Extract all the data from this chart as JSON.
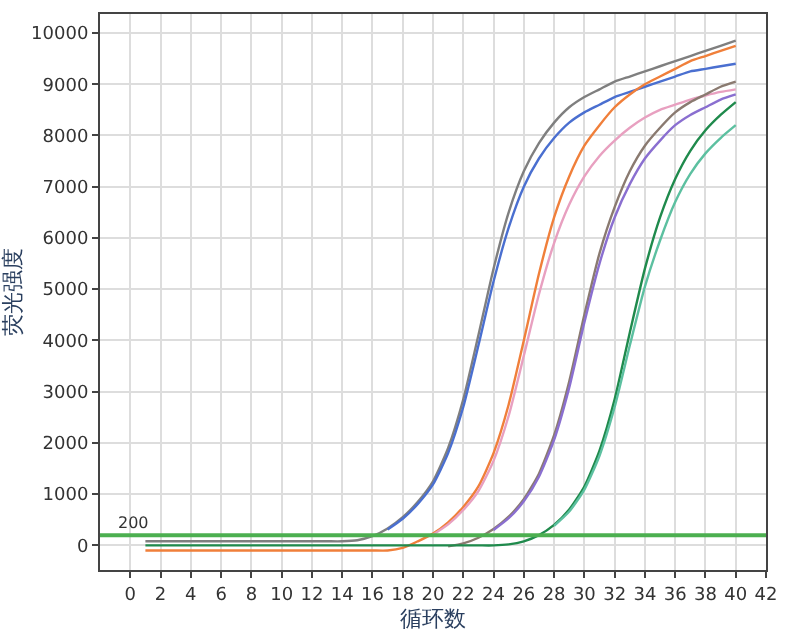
{
  "chart_data": {
    "type": "line",
    "xlabel": "循环数",
    "ylabel": "荧光强度",
    "x": [
      1,
      2,
      3,
      4,
      5,
      6,
      7,
      8,
      9,
      10,
      11,
      12,
      13,
      14,
      15,
      16,
      17,
      18,
      19,
      20,
      21,
      22,
      23,
      24,
      25,
      26,
      27,
      28,
      29,
      30,
      31,
      32,
      33,
      34,
      35,
      36,
      37,
      38,
      39,
      40
    ],
    "series": [
      {
        "color": "#7f7f7f",
        "values": [
          80,
          80,
          80,
          80,
          80,
          80,
          80,
          80,
          80,
          80,
          80,
          80,
          80,
          80,
          100,
          180,
          330,
          550,
          850,
          1250,
          1900,
          2850,
          4100,
          5400,
          6500,
          7300,
          7850,
          8250,
          8550,
          8750,
          8900,
          9050,
          9150,
          9250,
          9350,
          9450,
          9550,
          9650,
          9750,
          9850
        ]
      },
      {
        "color": "#4a6fd0",
        "values": [
          null,
          null,
          null,
          null,
          null,
          null,
          null,
          null,
          null,
          null,
          null,
          null,
          null,
          null,
          null,
          null,
          310,
          520,
          810,
          1190,
          1800,
          2700,
          3900,
          5150,
          6200,
          7000,
          7550,
          7950,
          8250,
          8450,
          8600,
          8750,
          8850,
          8950,
          9050,
          9150,
          9250,
          9300,
          9350,
          9400
        ]
      },
      {
        "color": "#f07f3a",
        "values": [
          -100,
          -100,
          -100,
          -100,
          -100,
          -100,
          -100,
          -100,
          -100,
          -100,
          -100,
          -100,
          -100,
          -100,
          -100,
          -100,
          -100,
          -50,
          80,
          230,
          450,
          750,
          1150,
          1800,
          2750,
          4000,
          5300,
          6400,
          7200,
          7800,
          8200,
          8550,
          8800,
          9000,
          9150,
          9300,
          9450,
          9550,
          9650,
          9750
        ]
      },
      {
        "color": "#e8a0c0",
        "values": [
          null,
          null,
          null,
          null,
          null,
          null,
          null,
          null,
          null,
          null,
          null,
          null,
          null,
          null,
          null,
          null,
          null,
          null,
          null,
          210,
          410,
          690,
          1060,
          1650,
          2530,
          3700,
          4900,
          5900,
          6650,
          7200,
          7600,
          7900,
          8150,
          8350,
          8500,
          8600,
          8700,
          8780,
          8850,
          8900
        ]
      },
      {
        "color": "#8a7a70",
        "values": [
          null,
          null,
          null,
          null,
          null,
          null,
          null,
          null,
          null,
          null,
          null,
          null,
          null,
          null,
          null,
          null,
          null,
          null,
          null,
          null,
          -20,
          40,
          150,
          320,
          560,
          900,
          1400,
          2150,
          3200,
          4500,
          5700,
          6600,
          7300,
          7800,
          8150,
          8450,
          8650,
          8800,
          8950,
          9050
        ]
      },
      {
        "color": "#8a6fd0",
        "values": [
          null,
          null,
          null,
          null,
          null,
          null,
          null,
          null,
          null,
          null,
          null,
          null,
          null,
          null,
          null,
          null,
          null,
          null,
          null,
          null,
          null,
          null,
          null,
          300,
          530,
          860,
          1340,
          2060,
          3080,
          4350,
          5500,
          6400,
          7050,
          7550,
          7900,
          8200,
          8400,
          8550,
          8700,
          8800
        ]
      },
      {
        "color": "#1f8a4c",
        "values": [
          0,
          0,
          0,
          0,
          0,
          0,
          0,
          0,
          0,
          0,
          0,
          0,
          0,
          0,
          0,
          0,
          0,
          0,
          0,
          0,
          0,
          0,
          0,
          0,
          20,
          80,
          200,
          400,
          700,
          1150,
          1850,
          2850,
          4150,
          5400,
          6400,
          7150,
          7700,
          8100,
          8400,
          8650
        ]
      },
      {
        "color": "#5cc0a0",
        "values": [
          null,
          null,
          null,
          null,
          null,
          null,
          null,
          null,
          null,
          null,
          null,
          null,
          null,
          null,
          null,
          null,
          null,
          null,
          null,
          null,
          null,
          null,
          null,
          null,
          null,
          null,
          null,
          380,
          660,
          1090,
          1750,
          2700,
          3900,
          5050,
          5950,
          6700,
          7250,
          7650,
          7950,
          8200
        ]
      }
    ],
    "ref_lines": [
      {
        "axis": "y",
        "value": 200,
        "label": "200",
        "color": "#4caf50"
      }
    ],
    "xlim": [
      -2,
      42
    ],
    "xticks": [
      0,
      2,
      4,
      6,
      8,
      10,
      12,
      14,
      16,
      18,
      20,
      22,
      24,
      26,
      28,
      30,
      32,
      34,
      36,
      38,
      40,
      42
    ],
    "ylim": [
      -480,
      10370
    ],
    "yticks": [
      0,
      1000,
      2000,
      3000,
      4000,
      5000,
      6000,
      7000,
      8000,
      9000,
      10000
    ],
    "grid": true,
    "marker": "none",
    "line_style": "solid"
  }
}
